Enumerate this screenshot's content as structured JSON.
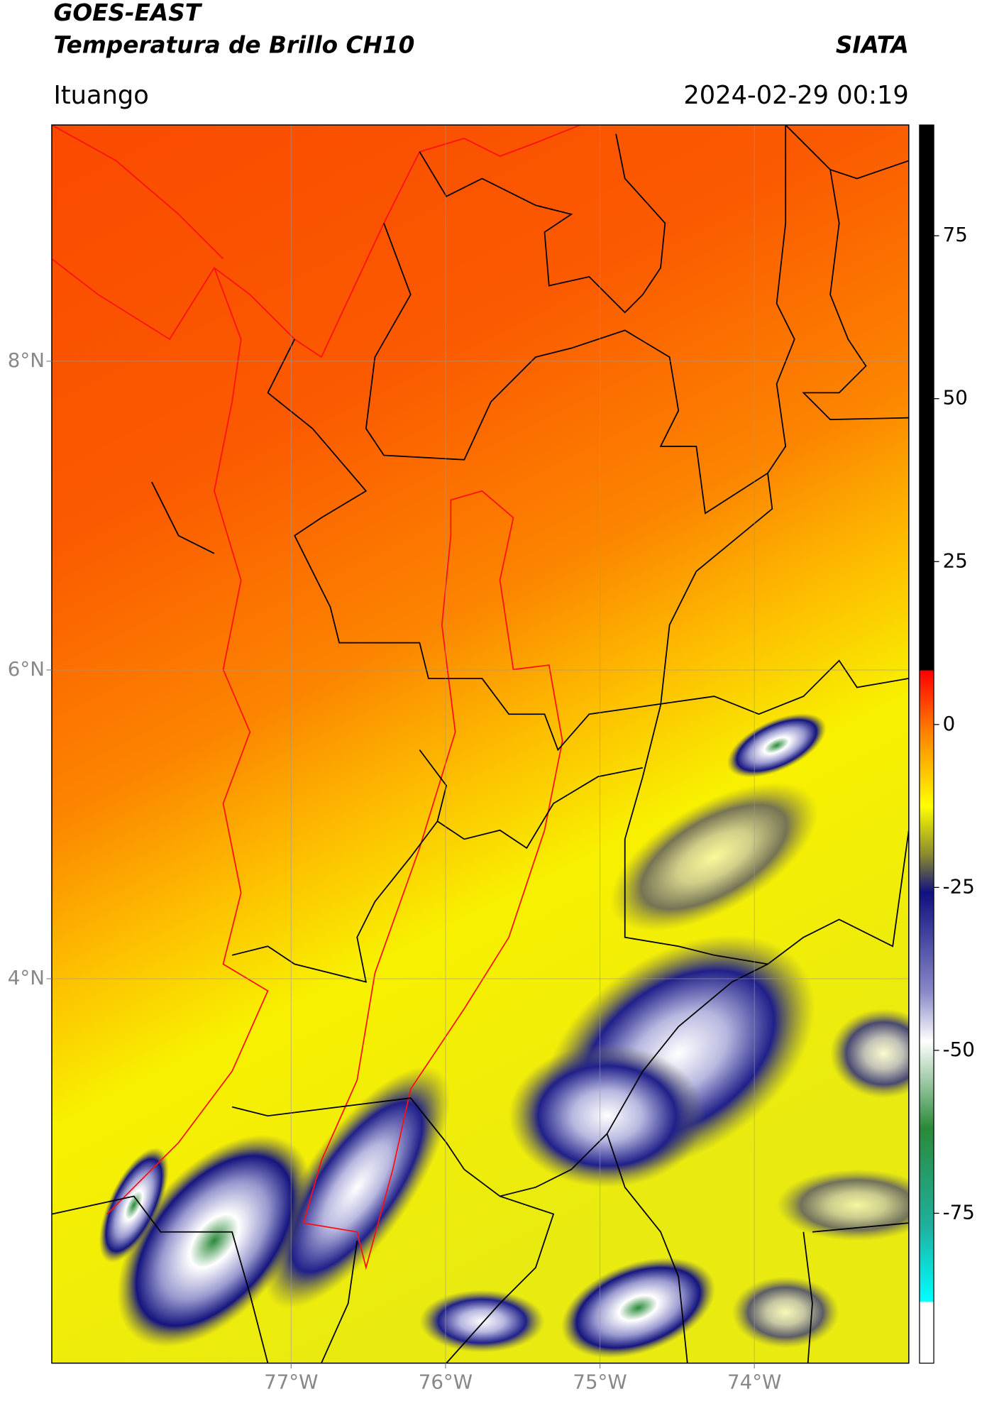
{
  "chart_data": {
    "type": "map",
    "title": "GOES-EAST",
    "subtitle": "Temperatura de Brillo CH10",
    "source": "SIATA",
    "location": "Ituango",
    "timestamp": "2024-02-29 00:19",
    "xlim": [
      -78.55,
      -73.0
    ],
    "ylim": [
      1.51,
      9.53
    ],
    "xticks": [
      {
        "value": -77,
        "label": "77°W"
      },
      {
        "value": -76,
        "label": "76°W"
      },
      {
        "value": -75,
        "label": "75°W"
      },
      {
        "value": -74,
        "label": "74°W"
      }
    ],
    "yticks": [
      {
        "value": 4,
        "label": "4°N"
      },
      {
        "value": 6,
        "label": "6°N"
      },
      {
        "value": 8,
        "label": "8°N"
      }
    ],
    "colorbar": {
      "lim": [
        -98,
        92
      ],
      "ticks": [
        75,
        50,
        25,
        0,
        -25,
        -50,
        -75
      ]
    },
    "grid": true
  }
}
